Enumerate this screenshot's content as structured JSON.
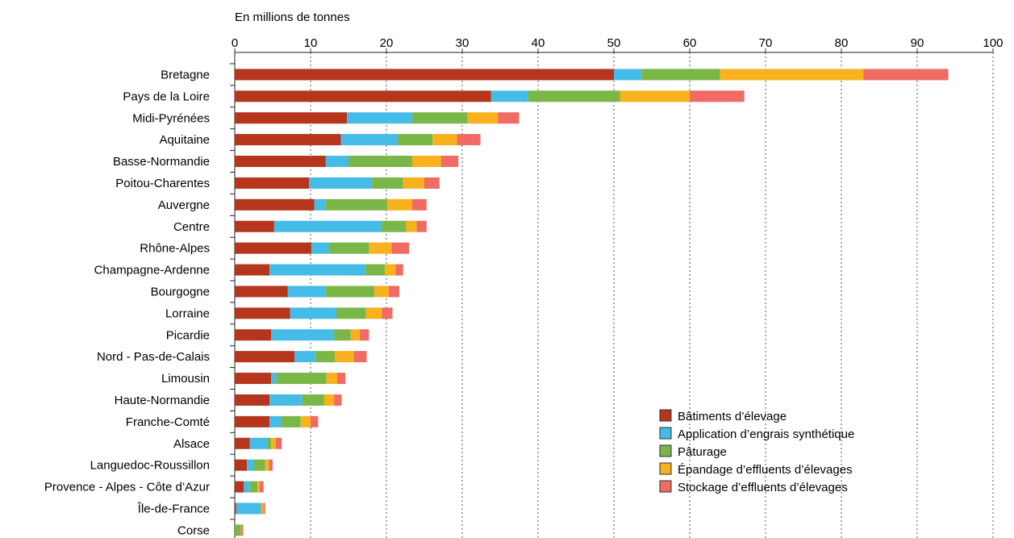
{
  "chart_data": {
    "type": "bar",
    "orientation": "horizontal",
    "stacked": true,
    "unit_label": "En millions de tonnes",
    "xlim": [
      0,
      100
    ],
    "x_ticks": [
      0,
      10,
      20,
      30,
      40,
      50,
      60,
      70,
      80,
      90,
      100
    ],
    "grid": "vertical dashed",
    "legend_position": "bottom-right",
    "categories": [
      "Bretagne",
      "Pays de la Loire",
      "Midi-Pyrénées",
      "Aquitaine",
      "Basse-Normandie",
      "Poitou-Charentes",
      "Auvergne",
      "Centre",
      "Rhône-Alpes",
      "Champagne-Ardenne",
      "Bourgogne",
      "Lorraine",
      "Picardie",
      "Nord - Pas-de-Calais",
      "Limousin",
      "Haute-Normandie",
      "Franche-Comté",
      "Alsace",
      "Languedoc-Roussillon",
      "Provence - Alpes - Côte d’Azur",
      "Île-de-France",
      "Corse"
    ],
    "series": [
      {
        "name": "Bâtiments d’élevage",
        "color": "#b5361c",
        "values": [
          50.0,
          33.8,
          14.8,
          14.0,
          12.0,
          9.8,
          10.5,
          5.2,
          10.1,
          4.6,
          7.0,
          7.3,
          4.8,
          7.9,
          4.8,
          4.6,
          4.6,
          2.0,
          1.6,
          1.2,
          0.2,
          0.0
        ]
      },
      {
        "name": "Application d’engrais synthétique",
        "color": "#45bce8",
        "values": [
          3.6,
          4.9,
          8.6,
          7.5,
          3.0,
          8.3,
          1.5,
          14.1,
          2.3,
          12.6,
          5.0,
          6.1,
          8.3,
          2.7,
          0.7,
          4.3,
          1.5,
          2.3,
          0.9,
          0.8,
          3.2,
          0.0
        ]
      },
      {
        "name": "Pâturage",
        "color": "#7ab648",
        "values": [
          10.4,
          12.1,
          7.3,
          4.6,
          8.4,
          4.1,
          8.1,
          3.3,
          5.3,
          2.6,
          6.4,
          3.9,
          2.2,
          2.6,
          6.6,
          2.9,
          2.6,
          0.5,
          1.5,
          1.0,
          0.1,
          0.8
        ]
      },
      {
        "name": "Épandage d’effluents d’élevages",
        "color": "#f7b21d",
        "values": [
          18.9,
          9.2,
          4.0,
          3.2,
          3.8,
          2.8,
          3.3,
          1.4,
          3.0,
          1.4,
          1.9,
          2.1,
          1.2,
          2.5,
          1.4,
          1.3,
          1.3,
          0.6,
          0.5,
          0.3,
          0.3,
          0.1
        ]
      },
      {
        "name": "Stockage d’effluents d’élevages",
        "color": "#ef6b64",
        "values": [
          11.2,
          7.2,
          2.8,
          3.1,
          2.3,
          2.0,
          1.9,
          1.3,
          2.3,
          1.0,
          1.4,
          1.4,
          1.2,
          1.7,
          1.1,
          1.0,
          1.0,
          0.8,
          0.5,
          0.5,
          0.2,
          0.2
        ]
      }
    ]
  }
}
